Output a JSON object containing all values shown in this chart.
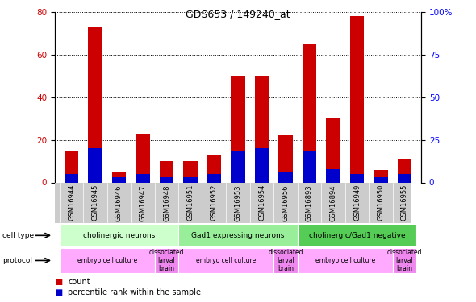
{
  "title": "GDS653 / 149240_at",
  "samples": [
    "GSM16944",
    "GSM16945",
    "GSM16946",
    "GSM16947",
    "GSM16948",
    "GSM16951",
    "GSM16952",
    "GSM16953",
    "GSM16954",
    "GSM16956",
    "GSM16893",
    "GSM16894",
    "GSM16949",
    "GSM16950",
    "GSM16955"
  ],
  "count_values": [
    15,
    73,
    5,
    23,
    10,
    10,
    13,
    50,
    50,
    22,
    65,
    30,
    78,
    6,
    11
  ],
  "percentile_values": [
    4,
    16,
    2.4,
    4,
    2.4,
    2.4,
    4,
    14.4,
    16,
    4.8,
    14.4,
    6.4,
    4,
    2.4,
    4
  ],
  "left_ylim": [
    0,
    80
  ],
  "right_ylim": [
    0,
    100
  ],
  "left_yticks": [
    0,
    20,
    40,
    60,
    80
  ],
  "right_yticks": [
    0,
    25,
    50,
    75,
    100
  ],
  "right_yticklabels": [
    "0",
    "25",
    "50",
    "75",
    "100%"
  ],
  "count_color": "#cc0000",
  "percentile_color": "#0000cc",
  "bar_width": 0.6,
  "cell_type_groups": [
    {
      "label": "cholinergic neurons",
      "start": 0,
      "end": 5,
      "color": "#ccffcc"
    },
    {
      "label": "Gad1 expressing neurons",
      "start": 5,
      "end": 10,
      "color": "#99ee99"
    },
    {
      "label": "cholinergic/Gad1 negative",
      "start": 10,
      "end": 15,
      "color": "#55cc55"
    }
  ],
  "protocol_groups": [
    {
      "label": "embryo cell culture",
      "start": 0,
      "end": 4,
      "color": "#ffaaff"
    },
    {
      "label": "dissociated\nlarval\nbrain",
      "start": 4,
      "end": 5,
      "color": "#ee88ee"
    },
    {
      "label": "embryo cell culture",
      "start": 5,
      "end": 9,
      "color": "#ffaaff"
    },
    {
      "label": "dissociated\nlarval\nbrain",
      "start": 9,
      "end": 10,
      "color": "#ee88ee"
    },
    {
      "label": "embryo cell culture",
      "start": 10,
      "end": 14,
      "color": "#ffaaff"
    },
    {
      "label": "dissociated\nlarval\nbrain",
      "start": 14,
      "end": 15,
      "color": "#ee88ee"
    }
  ],
  "xticklabel_fontsize": 6.0,
  "tick_bg_color": "#cccccc",
  "legend_count_label": "count",
  "legend_percentile_label": "percentile rank within the sample"
}
